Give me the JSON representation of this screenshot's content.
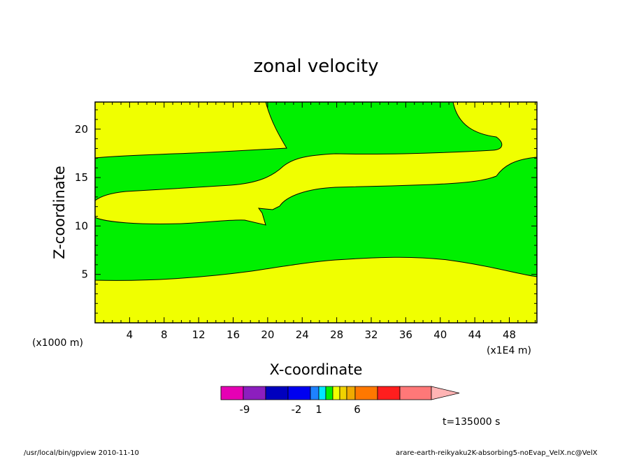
{
  "chart_data": {
    "type": "contour",
    "title": "zonal velocity",
    "xlabel": "X-coordinate",
    "ylabel": "Z-coordinate",
    "x_unit": "(x1000 m)",
    "x_scale_note": "(x1E4 m)",
    "x_ticks": [
      "4",
      "8",
      "12",
      "16",
      "20",
      "24",
      "28",
      "32",
      "36",
      "40",
      "44",
      "48"
    ],
    "y_ticks": [
      "5",
      "10",
      "15",
      "20"
    ],
    "xlim": [
      0,
      51.2
    ],
    "ylim": [
      0,
      22.8
    ],
    "colors": {
      "positive_small": "#f0ff00",
      "negative_small": "#00f000",
      "contour_line": "#000000"
    },
    "colorbar": {
      "tick_labels": [
        "-9",
        "-2",
        "1",
        "6"
      ],
      "segments": [
        "#e600b4",
        "#8c1ebe",
        "#0000be",
        "#0000f0",
        "#1e82ff",
        "#00e6ff",
        "#00f000",
        "#f0ff00",
        "#f0d200",
        "#f0aa00",
        "#ff7800",
        "#ff1e1e",
        "#ff7878",
        "#ffb4b4"
      ]
    },
    "time_label": "t=135000  s",
    "footer_left": "/usr/local/bin/gpview   2010-11-10",
    "footer_right": "arare-earth-reikyaku2K-absorbing5-noEvap_VelX.nc@VelX"
  }
}
